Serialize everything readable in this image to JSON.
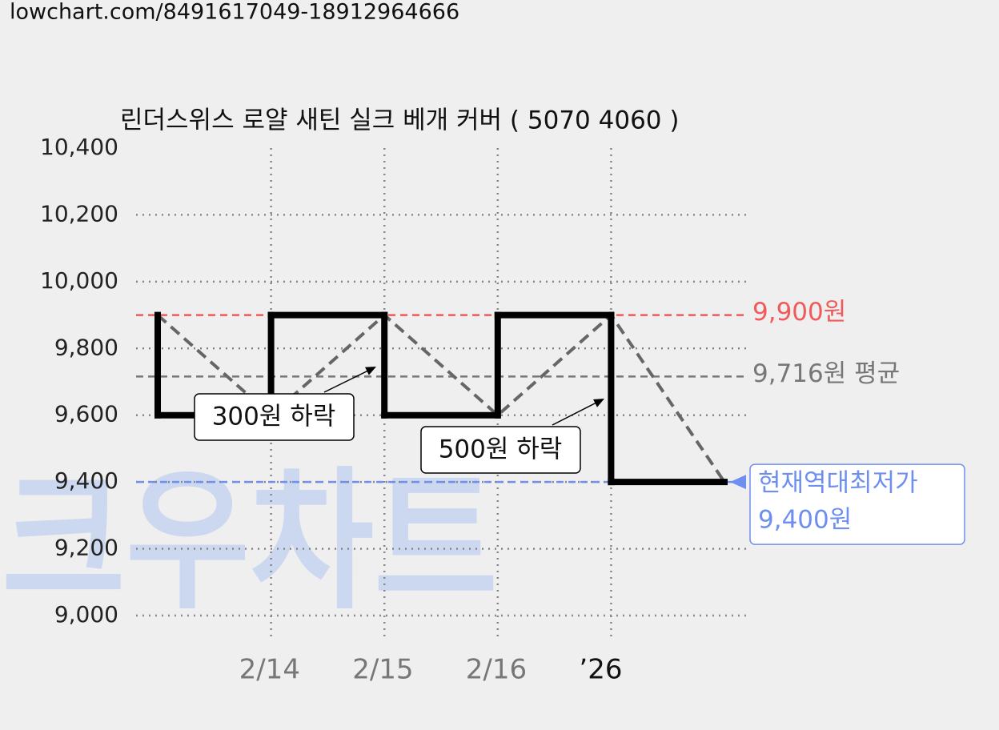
{
  "header": {
    "url": "lowchart.com/8491617049-18912964666"
  },
  "chart_data": {
    "type": "line",
    "title": "린더스위스 로얄 새틴 실크 베개 커버 ( 5070 4060 )",
    "watermark": "크우차트",
    "categories": [
      null,
      "2/14",
      "2/15",
      "2/16",
      "’26",
      null
    ],
    "category_colors": [
      null,
      "#777777",
      "#777777",
      "#777777",
      "#111111",
      null
    ],
    "values": [
      9900,
      9600,
      9900,
      9600,
      9900,
      9400
    ],
    "step_color": "#000000",
    "dash_color": "#666666",
    "ylim": [
      9000,
      10400
    ],
    "yticks": [
      {
        "value": 9000,
        "label": "9,000"
      },
      {
        "value": 9200,
        "label": "9,200"
      },
      {
        "value": 9400,
        "label": "9,400"
      },
      {
        "value": 9600,
        "label": "9,600"
      },
      {
        "value": 9800,
        "label": "9,800"
      },
      {
        "value": 10000,
        "label": "10,000"
      },
      {
        "value": 10200,
        "label": "10,200"
      },
      {
        "value": 10400,
        "label": "10,400"
      }
    ],
    "grid": true,
    "reference_lines": [
      {
        "value": 9900,
        "label": "9,900원",
        "color": "#f05a5a"
      },
      {
        "value": 9716,
        "label": "9,716원 평균",
        "color": "#777777"
      },
      {
        "value": 9400,
        "label": [
          "현재역대최저가",
          "9,400원"
        ],
        "color": "#6e8ff0"
      }
    ],
    "annotations": [
      {
        "text": "300원 하락"
      },
      {
        "text": "500원 하락"
      }
    ]
  }
}
